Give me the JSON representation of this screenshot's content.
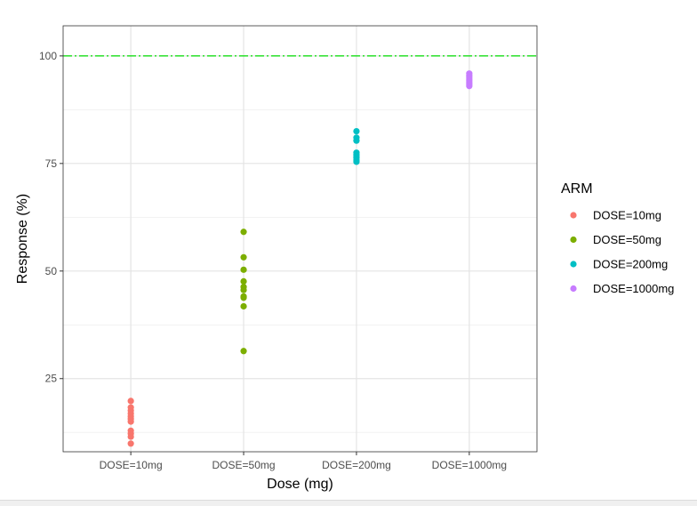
{
  "chart_data": {
    "type": "scatter",
    "title": "",
    "xlabel": "Dose (mg)",
    "ylabel": "Response (%)",
    "categories": [
      "DOSE=10mg",
      "DOSE=50mg",
      "DOSE=200mg",
      "DOSE=1000mg"
    ],
    "ylim": [
      8,
      107
    ],
    "yticks": [
      25,
      50,
      75,
      100
    ],
    "ytick_labels": [
      "25",
      "50",
      "75",
      "100"
    ],
    "grid": true,
    "reference_line": {
      "y": 100,
      "color": "#00dd00",
      "style": "dash-dot"
    },
    "legend": {
      "title": "ARM",
      "position": "right"
    },
    "series": [
      {
        "name": "DOSE=10mg",
        "color": "#F8766D",
        "category": "DOSE=10mg",
        "values": [
          19.8,
          18.3,
          17.6,
          16.9,
          16.2,
          15.6,
          15.0,
          12.9,
          12.2,
          11.5,
          9.9
        ]
      },
      {
        "name": "DOSE=50mg",
        "color": "#7CAE00",
        "category": "DOSE=50mg",
        "values": [
          59.1,
          53.2,
          50.3,
          47.6,
          46.3,
          45.6,
          44.1,
          43.8,
          41.8,
          31.4
        ]
      },
      {
        "name": "DOSE=200mg",
        "color": "#00BFC4",
        "category": "DOSE=200mg",
        "values": [
          82.5,
          81.0,
          80.3,
          77.5,
          77.0,
          76.6,
          76.3,
          75.8,
          75.4
        ]
      },
      {
        "name": "DOSE=1000mg",
        "color": "#C77CFF",
        "category": "DOSE=1000mg",
        "values": [
          95.9,
          95.4,
          95.0,
          94.6,
          94.2,
          93.8,
          93.4,
          93.0
        ]
      }
    ]
  }
}
